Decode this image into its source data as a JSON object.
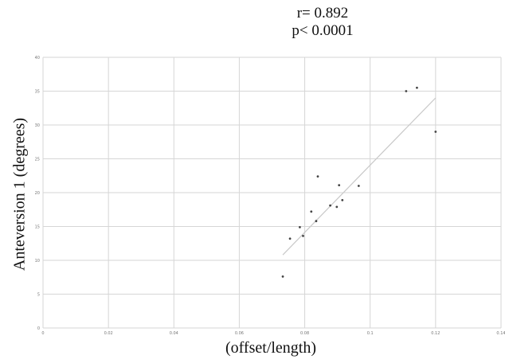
{
  "chart_data": {
    "type": "scatter",
    "title": "",
    "stats": {
      "r": "r= 0.892",
      "p": "p< 0.0001"
    },
    "xlabel": "(offset/length)",
    "ylabel": "Anteversion 1 (degrees)",
    "xlim": [
      0,
      0.14
    ],
    "ylim": [
      0,
      40
    ],
    "xticks": [
      "0",
      "0.02",
      "0.04",
      "0.06",
      "0.08",
      "0.1",
      "0.12",
      "0.14"
    ],
    "yticks": [
      "0",
      "5",
      "10",
      "15",
      "20",
      "25",
      "30",
      "35",
      "40"
    ],
    "grid": true,
    "legend": "none",
    "series": [
      {
        "points": [
          {
            "x": 0.0733,
            "y": 7.6
          },
          {
            "x": 0.0755,
            "y": 13.2
          },
          {
            "x": 0.0785,
            "y": 14.9
          },
          {
            "x": 0.0795,
            "y": 13.6
          },
          {
            "x": 0.082,
            "y": 17.2
          },
          {
            "x": 0.0835,
            "y": 15.8
          },
          {
            "x": 0.084,
            "y": 22.4
          },
          {
            "x": 0.0878,
            "y": 18.1
          },
          {
            "x": 0.0898,
            "y": 17.9
          },
          {
            "x": 0.0905,
            "y": 21.1
          },
          {
            "x": 0.0915,
            "y": 18.9
          },
          {
            "x": 0.0965,
            "y": 21.0
          },
          {
            "x": 0.111,
            "y": 35.0
          },
          {
            "x": 0.1143,
            "y": 35.5
          },
          {
            "x": 0.12,
            "y": 29.0
          }
        ],
        "color": "#444444"
      }
    ],
    "trendline": {
      "x": [
        0.0733,
        0.12
      ],
      "y": [
        10.8,
        34.0
      ],
      "color": "#c8c8c8"
    }
  }
}
